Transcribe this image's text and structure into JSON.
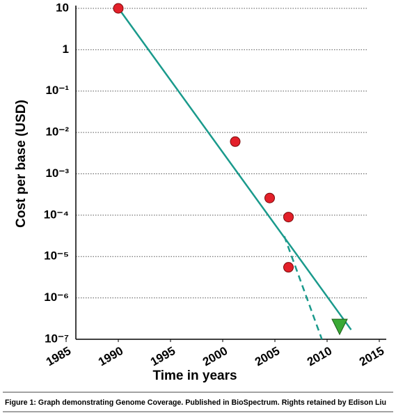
{
  "chart_data": {
    "type": "scatter",
    "y_label": "Cost per base (USD)",
    "x_label": "Time in years",
    "caption": "Figure 1: Graph demonstrating Genome Coverage. Published in BioSpectrum. Rights retained by Edison Liu",
    "yscale": "log",
    "grid": true,
    "xlim": [
      1985,
      2015
    ],
    "xticks": [
      1985,
      1990,
      1995,
      2000,
      2005,
      2010,
      2015
    ],
    "ylim": [
      1e-07,
      10
    ],
    "yticks": [
      {
        "value": 1e-07,
        "label": "10⁻⁷"
      },
      {
        "value": 1e-06,
        "label": "10⁻⁶"
      },
      {
        "value": 1e-05,
        "label": "10⁻⁵"
      },
      {
        "value": 0.0001,
        "label": "10⁻⁴"
      },
      {
        "value": 0.001,
        "label": "10⁻³"
      },
      {
        "value": 0.01,
        "label": "10⁻²"
      },
      {
        "value": 0.1,
        "label": "10⁻¹"
      },
      1,
      10
    ],
    "series": [
      {
        "marker": "line",
        "color": "#1a9a8c",
        "dash": false,
        "x": [
          1990.3,
          2012.3
        ],
        "values": [
          8,
          1.7e-07
        ]
      },
      {
        "marker": "line",
        "color": "#1a9a8c",
        "dash": true,
        "x": [
          2005.9,
          2009.5
        ],
        "values": [
          3.1e-05,
          1e-07
        ]
      },
      {
        "marker": "circle",
        "color": "#e3202a",
        "x": [
          1990,
          2001.2,
          2004.5,
          2006.3,
          2006.3
        ],
        "values": [
          10,
          0.006,
          0.00026,
          9e-05,
          5.5e-06
        ]
      },
      {
        "marker": "triangle",
        "color": "#3aaa35",
        "x": [
          2011.2
        ],
        "values": [
          2e-07
        ]
      }
    ]
  }
}
